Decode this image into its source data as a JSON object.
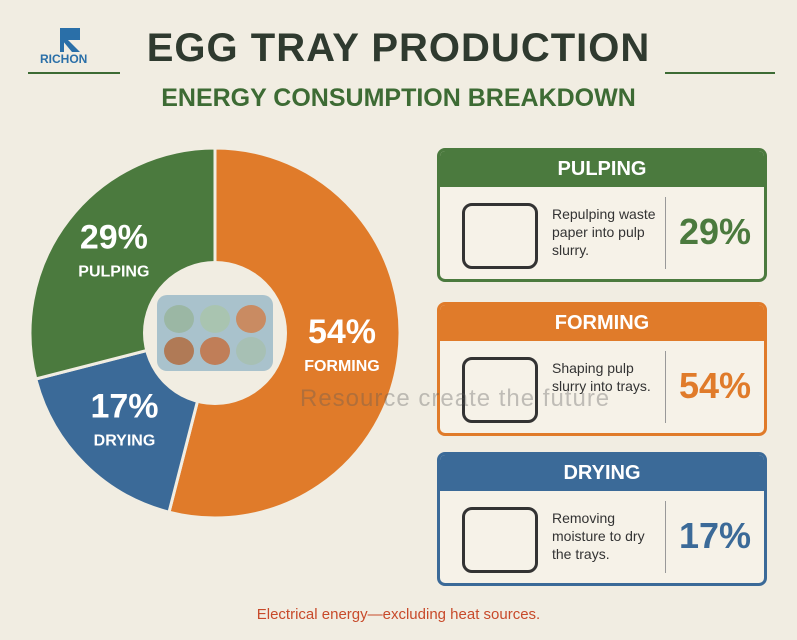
{
  "logo": "RICHON",
  "title": "EGG TRAY PRODUCTION",
  "subtitle": "ENERGY CONSUMPTION BREAKDOWN",
  "chart_data": {
    "type": "pie",
    "categories": [
      "PULPING",
      "FORMING",
      "DRYING"
    ],
    "values": [
      29,
      54,
      17
    ],
    "value_labels": [
      "29%",
      "54%",
      "17%"
    ],
    "colors": [
      "#4b7a3e",
      "#e07b2a",
      "#3b6a98"
    ]
  },
  "cards": [
    {
      "description": "Repulping waste paper into pulp slurry."
    },
    {
      "description": "Shaping pulp slurry into trays."
    },
    {
      "description": "Removing moisture to dry the trays."
    }
  ],
  "watermark": "Resource create the future",
  "footnote": "Electrical energy—excluding heat sources."
}
